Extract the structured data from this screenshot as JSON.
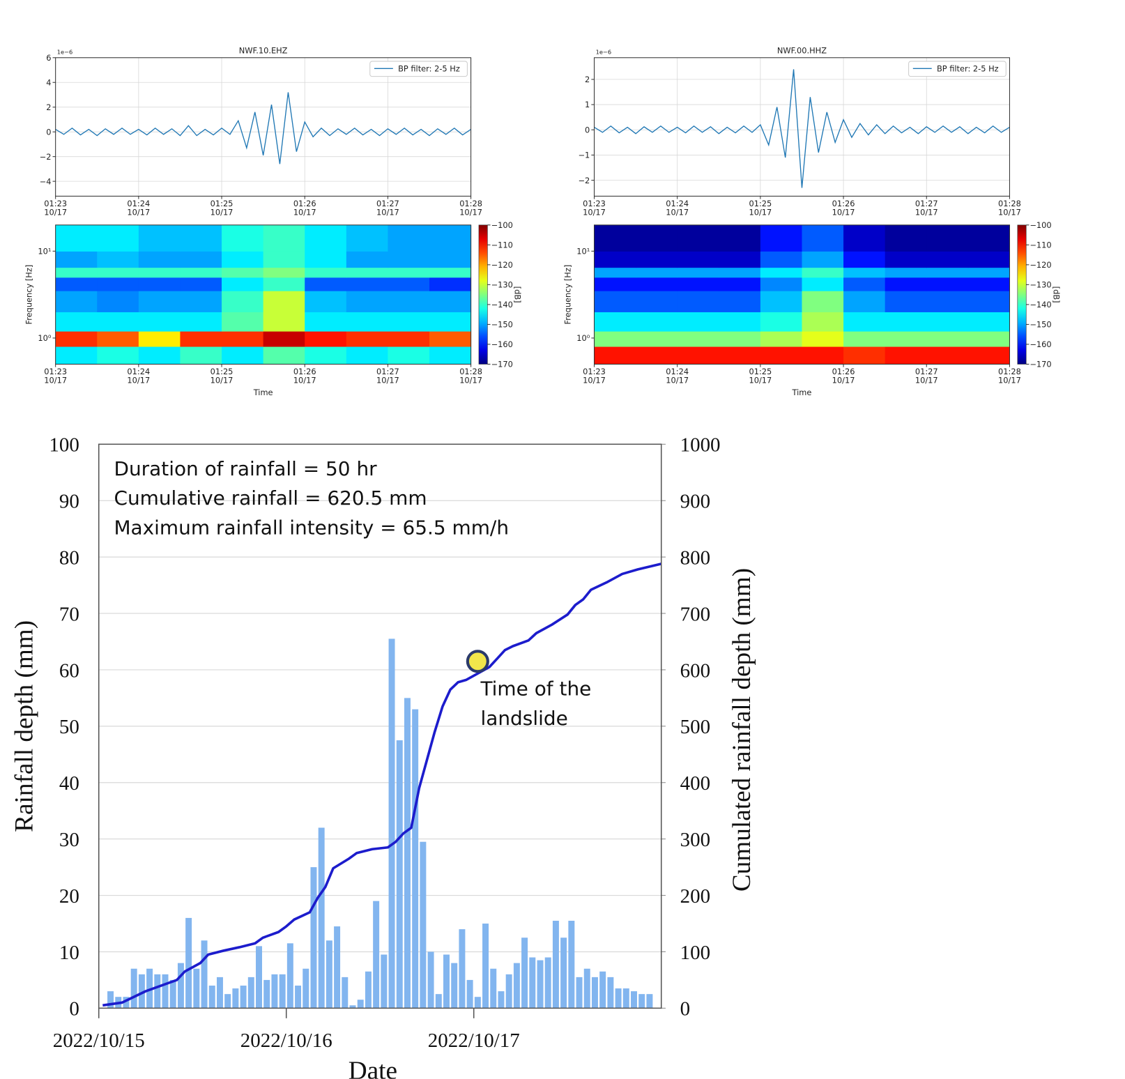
{
  "chart_data": [
    {
      "type": "line",
      "title": "NWF.10.EHZ",
      "offset_text": "1e−6",
      "grid": true,
      "legend": "upper right",
      "xlim": [
        0,
        5
      ],
      "xticks": [
        {
          "value": 0,
          "label": "01:23\n10/17"
        },
        {
          "value": 1,
          "label": "01:24\n10/17"
        },
        {
          "value": 2,
          "label": "01:25\n10/17"
        },
        {
          "value": 3,
          "label": "01:26\n10/17"
        },
        {
          "value": 4,
          "label": "01:27\n10/17"
        },
        {
          "value": 5,
          "label": "01:28\n10/17"
        }
      ],
      "ylim": [
        -5.2,
        6
      ],
      "yticks": [
        {
          "value": -4,
          "label": "−4"
        },
        {
          "value": -2,
          "label": "−2"
        },
        0,
        2,
        4,
        6
      ],
      "series": [
        {
          "name": "BP filter: 2-5 Hz",
          "color": "#1f77b4",
          "x": [
            0,
            0.1,
            0.2,
            0.3,
            0.4,
            0.5,
            0.6,
            0.7,
            0.8,
            0.9,
            1,
            1.1,
            1.2,
            1.3,
            1.4,
            1.5,
            1.6,
            1.7,
            1.8,
            1.9,
            2,
            2.1,
            2.2,
            2.3,
            2.4,
            2.5,
            2.6,
            2.7,
            2.8,
            2.9,
            3,
            3.1,
            3.2,
            3.3,
            3.4,
            3.5,
            3.6,
            3.7,
            3.8,
            3.9,
            4,
            4.1,
            4.2,
            4.3,
            4.4,
            4.5,
            4.6,
            4.7,
            4.8,
            4.9,
            5
          ],
          "values": [
            0.2,
            -0.2,
            0.3,
            -0.25,
            0.2,
            -0.3,
            0.25,
            -0.2,
            0.3,
            -0.2,
            0.2,
            -0.25,
            0.3,
            -0.2,
            0.25,
            -0.3,
            0.5,
            -0.3,
            0.2,
            -0.25,
            0.3,
            -0.2,
            0.9,
            -1.3,
            1.6,
            -1.9,
            2.2,
            -2.6,
            3.2,
            -1.6,
            0.8,
            -0.4,
            0.3,
            -0.3,
            0.25,
            -0.2,
            0.3,
            -0.25,
            0.2,
            -0.3,
            0.25,
            -0.2,
            0.3,
            -0.25,
            0.2,
            -0.3,
            0.25,
            -0.2,
            0.3,
            -0.25,
            0.2
          ]
        }
      ]
    },
    {
      "type": "line",
      "title": "NWF.00.HHZ",
      "offset_text": "1e−6",
      "grid": true,
      "legend": "upper right",
      "xlim": [
        0,
        5
      ],
      "xticks": [
        {
          "value": 0,
          "label": "01:23\n10/17"
        },
        {
          "value": 1,
          "label": "01:24\n10/17"
        },
        {
          "value": 2,
          "label": "01:25\n10/17"
        },
        {
          "value": 3,
          "label": "01:26\n10/17"
        },
        {
          "value": 4,
          "label": "01:27\n10/17"
        },
        {
          "value": 5,
          "label": "01:28\n10/17"
        }
      ],
      "ylim": [
        -2.63,
        2.86
      ],
      "yticks": [
        {
          "value": -2,
          "label": "−2"
        },
        {
          "value": -1,
          "label": "−1"
        },
        0,
        1,
        2
      ],
      "series": [
        {
          "name": "BP filter: 2-5 Hz",
          "color": "#1f77b4",
          "x": [
            0,
            0.1,
            0.2,
            0.3,
            0.4,
            0.5,
            0.6,
            0.7,
            0.8,
            0.9,
            1,
            1.1,
            1.2,
            1.3,
            1.4,
            1.5,
            1.6,
            1.7,
            1.8,
            1.9,
            2,
            2.1,
            2.2,
            2.3,
            2.4,
            2.5,
            2.6,
            2.7,
            2.8,
            2.9,
            3,
            3.1,
            3.2,
            3.3,
            3.4,
            3.5,
            3.6,
            3.7,
            3.8,
            3.9,
            4,
            4.1,
            4.2,
            4.3,
            4.4,
            4.5,
            4.6,
            4.7,
            4.8,
            4.9,
            5
          ],
          "values": [
            0.1,
            -0.1,
            0.15,
            -0.12,
            0.1,
            -0.15,
            0.12,
            -0.1,
            0.15,
            -0.1,
            0.1,
            -0.12,
            0.15,
            -0.1,
            0.12,
            -0.15,
            0.1,
            -0.12,
            0.15,
            -0.1,
            0.2,
            -0.6,
            0.9,
            -1.1,
            2.4,
            -2.3,
            1.3,
            -0.9,
            0.7,
            -0.5,
            0.4,
            -0.3,
            0.25,
            -0.2,
            0.2,
            -0.15,
            0.15,
            -0.12,
            0.1,
            -0.15,
            0.12,
            -0.1,
            0.15,
            -0.1,
            0.12,
            -0.15,
            0.1,
            -0.12,
            0.15,
            -0.1,
            0.1
          ]
        }
      ]
    },
    {
      "type": "heatmap",
      "xlabel": "Time",
      "ylabel": "Frequency [Hz]",
      "colorbar_label": "[dB]",
      "colormap": "jet",
      "log_y": true,
      "xlim": [
        0,
        5
      ],
      "xticks": [
        {
          "value": 0,
          "label": "01:23\n10/17"
        },
        {
          "value": 1,
          "label": "01:24\n10/17"
        },
        {
          "value": 2,
          "label": "01:25\n10/17"
        },
        {
          "value": 3,
          "label": "01:26\n10/17"
        },
        {
          "value": 4,
          "label": "01:27\n10/17"
        },
        {
          "value": 5,
          "label": "01:28\n10/17"
        }
      ],
      "ylim": [
        0.5,
        20
      ],
      "yticks": [
        {
          "value": 1,
          "label": "10⁰"
        },
        {
          "value": 10,
          "label": "10¹"
        }
      ],
      "clim": [
        -170,
        -100
      ],
      "cticks": [
        {
          "value": -170,
          "label": "−170"
        },
        {
          "value": -160,
          "label": "−160"
        },
        {
          "value": -150,
          "label": "−150"
        },
        {
          "value": -140,
          "label": "−140"
        },
        {
          "value": -130,
          "label": "−130"
        },
        {
          "value": -120,
          "label": "−120"
        },
        {
          "value": -110,
          "label": "−110"
        },
        {
          "value": -100,
          "label": "−100"
        }
      ],
      "xbins": [
        0,
        0.5,
        1,
        1.5,
        2,
        2.5,
        3,
        3.5,
        4,
        4.5,
        5
      ],
      "ybins": [
        0.5,
        0.8,
        1.2,
        2,
        3.5,
        5,
        6.5,
        10,
        20
      ],
      "z": [
        [
          -145,
          -142,
          -145,
          -140,
          -145,
          -138,
          -142,
          -145,
          -142,
          -145
        ],
        [
          -112,
          -115,
          -125,
          -112,
          -112,
          -105,
          -110,
          -112,
          -112,
          -115
        ],
        [
          -145,
          -145,
          -145,
          -145,
          -138,
          -130,
          -145,
          -145,
          -145,
          -145
        ],
        [
          -150,
          -152,
          -150,
          -150,
          -140,
          -130,
          -148,
          -150,
          -150,
          -150
        ],
        [
          -155,
          -155,
          -155,
          -155,
          -145,
          -140,
          -155,
          -155,
          -155,
          -158
        ],
        [
          -140,
          -140,
          -140,
          -140,
          -138,
          -135,
          -140,
          -140,
          -140,
          -140
        ],
        [
          -150,
          -148,
          -150,
          -150,
          -145,
          -140,
          -145,
          -150,
          -150,
          -150
        ],
        [
          -145,
          -145,
          -148,
          -148,
          -142,
          -140,
          -145,
          -148,
          -150,
          -150
        ]
      ]
    },
    {
      "type": "heatmap",
      "xlabel": "Time",
      "ylabel": "Frequency [Hz]",
      "colorbar_label": "[dB]",
      "colormap": "jet",
      "log_y": true,
      "xlim": [
        0,
        5
      ],
      "xticks": [
        {
          "value": 0,
          "label": "01:23\n10/17"
        },
        {
          "value": 1,
          "label": "01:24\n10/17"
        },
        {
          "value": 2,
          "label": "01:25\n10/17"
        },
        {
          "value": 3,
          "label": "01:26\n10/17"
        },
        {
          "value": 4,
          "label": "01:27\n10/17"
        },
        {
          "value": 5,
          "label": "01:28\n10/17"
        }
      ],
      "ylim": [
        0.5,
        20
      ],
      "yticks": [
        {
          "value": 1,
          "label": "10⁰"
        },
        {
          "value": 10,
          "label": "10¹"
        }
      ],
      "clim": [
        -170,
        -100
      ],
      "cticks": [
        {
          "value": -170,
          "label": "−170"
        },
        {
          "value": -160,
          "label": "−160"
        },
        {
          "value": -150,
          "label": "−150"
        },
        {
          "value": -140,
          "label": "−140"
        },
        {
          "value": -130,
          "label": "−130"
        },
        {
          "value": -120,
          "label": "−120"
        },
        {
          "value": -110,
          "label": "−110"
        },
        {
          "value": -100,
          "label": "−100"
        }
      ],
      "xbins": [
        0,
        0.5,
        1,
        1.5,
        2,
        2.5,
        3,
        3.5,
        4,
        4.5,
        5
      ],
      "ybins": [
        0.5,
        0.8,
        1.2,
        2,
        3.5,
        5,
        6.5,
        10,
        20
      ],
      "z": [
        [
          -110,
          -110,
          -110,
          -110,
          -110,
          -110,
          -112,
          -110,
          -110,
          -110
        ],
        [
          -135,
          -135,
          -135,
          -135,
          -132,
          -128,
          -135,
          -135,
          -135,
          -135
        ],
        [
          -145,
          -145,
          -145,
          -145,
          -142,
          -132,
          -145,
          -145,
          -145,
          -145
        ],
        [
          -155,
          -155,
          -155,
          -155,
          -148,
          -135,
          -150,
          -155,
          -155,
          -155
        ],
        [
          -160,
          -160,
          -160,
          -160,
          -152,
          -145,
          -155,
          -160,
          -160,
          -160
        ],
        [
          -150,
          -150,
          -150,
          -150,
          -145,
          -140,
          -148,
          -150,
          -150,
          -150
        ],
        [
          -165,
          -165,
          -165,
          -165,
          -155,
          -150,
          -160,
          -165,
          -165,
          -165
        ],
        [
          -168,
          -168,
          -168,
          -168,
          -160,
          -155,
          -165,
          -168,
          -168,
          -168
        ]
      ]
    },
    {
      "type": "bar",
      "xlabel": "Date",
      "ylabel": "Rainfall depth (mm)",
      "y2label": "Cumulated rainfall depth (mm)",
      "grid": true,
      "annotations": [
        "Duration of rainfall = 50 hr",
        "Cumulative rainfall = 620.5 mm",
        "Maximum rainfall intensity = 65.5 mm/h"
      ],
      "marker": {
        "label": "Time of the\nlandslide",
        "x": 48.5,
        "value": 615,
        "axis": "y2",
        "color": "#f2e64b"
      },
      "xlim": [
        0,
        72
      ],
      "xticks": [
        {
          "value": 0,
          "label": "2022/10/15"
        },
        {
          "value": 24,
          "label": "2022/10/16"
        },
        {
          "value": 48,
          "label": "2022/10/17"
        }
      ],
      "ylim": [
        0,
        100
      ],
      "yticks": [
        0,
        10,
        20,
        30,
        40,
        50,
        60,
        70,
        80,
        90,
        100
      ],
      "y2lim": [
        0,
        1000
      ],
      "y2ticks": [
        0,
        100,
        200,
        300,
        400,
        500,
        600,
        700,
        800,
        900,
        1000
      ],
      "series": [
        {
          "type": "bar",
          "color": "#82b5ef",
          "x": [
            1.5,
            2.5,
            3.5,
            4.5,
            5.5,
            6.5,
            7.5,
            8.5,
            9.5,
            10.5,
            11.5,
            12.5,
            13.5,
            14.5,
            15.5,
            16.5,
            17.5,
            18.5,
            19.5,
            20.5,
            21.5,
            22.5,
            23.5,
            24.5,
            25.5,
            26.5,
            27.5,
            28.5,
            29.5,
            30.5,
            31.5,
            32.5,
            33.5,
            34.5,
            35.5,
            36.5,
            37.5,
            38.5,
            39.5,
            40.5,
            41.5,
            42.5,
            43.5,
            44.5,
            45.5,
            46.5,
            47.5,
            48.5,
            49.5,
            50.5,
            51.5,
            52.5,
            53.5,
            54.5,
            55.5,
            56.5,
            57.5,
            58.5,
            59.5,
            60.5,
            61.5,
            62.5,
            63.5,
            64.5,
            65.5,
            66.5,
            67.5,
            68.5,
            69.5,
            70.5
          ],
          "values": [
            3,
            2,
            2,
            7,
            6,
            7,
            6,
            6,
            5,
            8,
            16,
            7,
            12,
            4,
            5.5,
            2.5,
            3.5,
            4,
            5.5,
            11,
            5,
            6,
            6,
            11.5,
            4,
            7,
            25,
            32,
            12,
            14.5,
            5.5,
            0.5,
            1.5,
            6.5,
            19,
            9.5,
            65.5,
            47.5,
            55,
            53,
            29.5,
            10,
            2.5,
            9.5,
            8,
            14,
            5,
            2,
            15,
            7,
            3,
            6,
            8,
            12.5,
            9,
            8.5,
            9,
            15.5,
            12.5,
            15.5,
            5.5,
            7,
            5.5,
            6.5,
            5.5,
            3.5,
            3.5,
            3,
            2.5,
            2.5
          ]
        },
        {
          "type": "line",
          "axis": "y2",
          "color": "#1c1ccc",
          "x": [
            0.5,
            3,
            6,
            9,
            10,
            11,
            13,
            14,
            16,
            18,
            20,
            21,
            23,
            24,
            25,
            27,
            28,
            29,
            30,
            32,
            33,
            35,
            37,
            38,
            39,
            40,
            41,
            42,
            43,
            44,
            45,
            46,
            47,
            50,
            51,
            52,
            53,
            55,
            56,
            58,
            60,
            61,
            62,
            63,
            65,
            67,
            69,
            72
          ],
          "values": [
            5,
            10,
            30,
            45,
            50,
            65,
            80,
            95,
            102,
            108,
            115,
            125,
            135,
            145,
            157,
            170,
            195,
            215,
            248,
            265,
            275,
            282,
            285,
            295,
            310,
            320,
            390,
            440,
            490,
            535,
            565,
            578,
            582,
            605,
            620,
            635,
            642,
            652,
            665,
            680,
            698,
            715,
            725,
            742,
            755,
            770,
            778,
            788
          ]
        }
      ]
    }
  ]
}
